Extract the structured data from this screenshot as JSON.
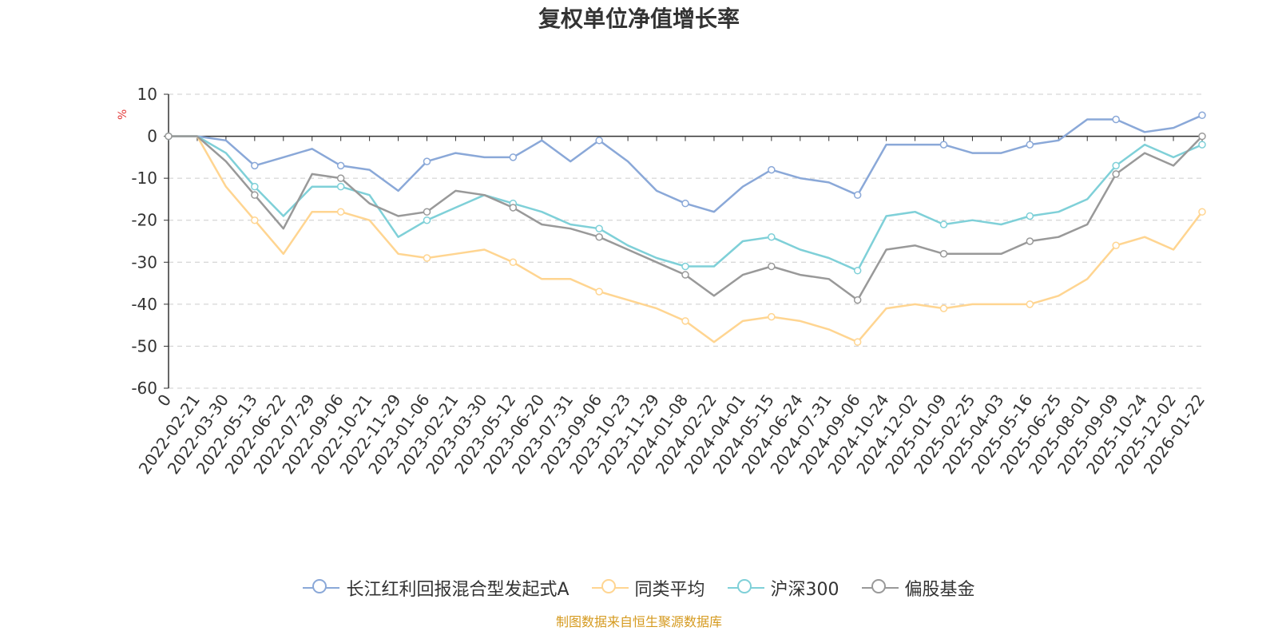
{
  "chart_data": {
    "type": "line",
    "title": "复权单位净值增长率",
    "ylabel": "%",
    "ylim": [
      -60,
      10
    ],
    "yticks": [
      "10",
      "0",
      "-10",
      "-20",
      "-30",
      "-40",
      "-50",
      "-60"
    ],
    "x_origin_label": "0",
    "categories": [
      "2022-02-21",
      "2022-03-30",
      "2022-05-13",
      "2022-06-22",
      "2022-07-29",
      "2022-09-06",
      "2022-10-21",
      "2022-11-29",
      "2023-01-06",
      "2023-02-21",
      "2023-03-30",
      "2023-05-12",
      "2023-06-20",
      "2023-07-31",
      "2023-09-06",
      "2023-10-23",
      "2023-11-29",
      "2024-01-08",
      "2024-02-22",
      "2024-04-01",
      "2024-05-15",
      "2024-06-24",
      "2024-07-31",
      "2024-09-06",
      "2024-10-24",
      "2024-12-02",
      "2025-01-09",
      "2025-02-25",
      "2025-04-03",
      "2025-05-16",
      "2025-06-25",
      "2025-08-01",
      "2025-09-09",
      "2025-10-24",
      "2025-12-02",
      "2026-01-22"
    ],
    "series": [
      {
        "name": "长江红利回报混合型发起式A",
        "color": "#8aa8d8",
        "values": [
          0,
          -1,
          -7,
          -5,
          -3,
          -7,
          -8,
          -13,
          -6,
          -4,
          -5,
          -5,
          -1,
          -6,
          -1,
          -6,
          -13,
          -16,
          -18,
          -12,
          -8,
          -10,
          -11,
          -14,
          -2,
          -2,
          -2,
          -4,
          -4,
          -2,
          -1,
          4,
          4,
          1,
          2,
          5
        ]
      },
      {
        "name": "同类平均",
        "color": "#ffd591",
        "values": [
          0,
          -12,
          -20,
          -28,
          -18,
          -18,
          -20,
          -28,
          -29,
          -28,
          -27,
          -30,
          -34,
          -34,
          -37,
          -39,
          -41,
          -44,
          -49,
          -44,
          -43,
          -44,
          -46,
          -49,
          -41,
          -40,
          -41,
          -40,
          -40,
          -40,
          -38,
          -34,
          -26,
          -24,
          -27,
          -18
        ]
      },
      {
        "name": "沪深300",
        "color": "#7fd0d8",
        "values": [
          0,
          -4,
          -12,
          -19,
          -12,
          -12,
          -14,
          -24,
          -20,
          -17,
          -14,
          -16,
          -18,
          -21,
          -22,
          -26,
          -29,
          -31,
          -31,
          -25,
          -24,
          -27,
          -29,
          -32,
          -19,
          -18,
          -21,
          -20,
          -21,
          -19,
          -18,
          -15,
          -7,
          -2,
          -5,
          -2
        ]
      },
      {
        "name": "偏股基金",
        "color": "#999999",
        "values": [
          0,
          -6,
          -14,
          -22,
          -9,
          -10,
          -16,
          -19,
          -18,
          -13,
          -14,
          -17,
          -21,
          -22,
          -24,
          -27,
          -30,
          -33,
          -38,
          -33,
          -31,
          -33,
          -34,
          -39,
          -27,
          -26,
          -28,
          -28,
          -28,
          -25,
          -24,
          -21,
          -9,
          -4,
          -7,
          0
        ]
      }
    ],
    "legend_position": "bottom"
  },
  "source_note": "制图数据来自恒生聚源数据库"
}
